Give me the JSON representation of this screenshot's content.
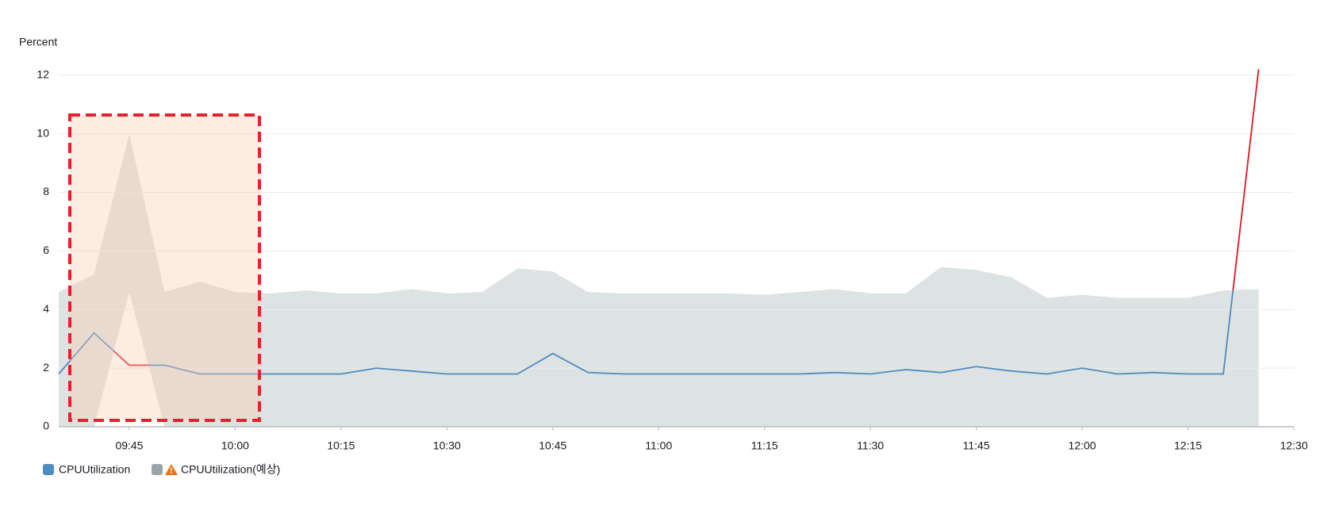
{
  "chart_data": {
    "type": "anomaly-band",
    "y_label": "Percent",
    "x": [
      "09:35",
      "09:40",
      "09:45",
      "09:50",
      "09:55",
      "10:00",
      "10:05",
      "10:10",
      "10:15",
      "10:20",
      "10:25",
      "10:30",
      "10:35",
      "10:40",
      "10:45",
      "10:50",
      "10:55",
      "11:00",
      "11:05",
      "11:10",
      "11:15",
      "11:20",
      "11:25",
      "11:30",
      "11:35",
      "11:40",
      "11:45",
      "11:50",
      "11:55",
      "12:00",
      "12:05",
      "12:10",
      "12:15",
      "12:20",
      "12:25"
    ],
    "xlim": [
      "09:35",
      "12:30"
    ],
    "xticks": [
      "09:45",
      "10:00",
      "10:15",
      "10:30",
      "10:45",
      "11:00",
      "11:15",
      "11:30",
      "11:45",
      "12:00",
      "12:15",
      "12:30"
    ],
    "ylim": [
      0,
      12.4
    ],
    "yticks": [
      0,
      2,
      4,
      6,
      8,
      10,
      12
    ],
    "grid": true,
    "anomaly_color": "#e8202a",
    "series": [
      {
        "name": "CPUUtilization",
        "color": "#4f8ac0",
        "values": [
          1.8,
          3.2,
          2.1,
          2.1,
          1.8,
          1.8,
          1.8,
          1.8,
          1.8,
          2.0,
          1.9,
          1.8,
          1.8,
          1.8,
          2.5,
          1.85,
          1.8,
          1.8,
          1.8,
          1.8,
          1.8,
          1.8,
          1.85,
          1.8,
          1.95,
          1.85,
          2.05,
          1.9,
          1.8,
          2.0,
          1.8,
          1.85,
          1.8,
          1.8,
          12.2
        ]
      },
      {
        "name": "CPUUtilization(예상)",
        "color": "#dde3e3",
        "upper": [
          4.6,
          5.2,
          10,
          4.6,
          4.95,
          4.6,
          4.55,
          4.65,
          4.55,
          4.55,
          4.7,
          4.55,
          4.6,
          5.4,
          5.3,
          4.6,
          4.55,
          4.55,
          4.55,
          4.55,
          4.5,
          4.6,
          4.7,
          4.55,
          4.55,
          5.45,
          5.35,
          5.1,
          4.4,
          4.5,
          4.4,
          4.4,
          4.4,
          4.65,
          4.7
        ],
        "lower": [
          0,
          0,
          4.6,
          0,
          0,
          0,
          0,
          0,
          0,
          0,
          0,
          0,
          0,
          0,
          0,
          0,
          0,
          0,
          0,
          0,
          0,
          0,
          0,
          0,
          0,
          0,
          0,
          0,
          0,
          0,
          0,
          0,
          0,
          0,
          0
        ]
      }
    ]
  }
}
